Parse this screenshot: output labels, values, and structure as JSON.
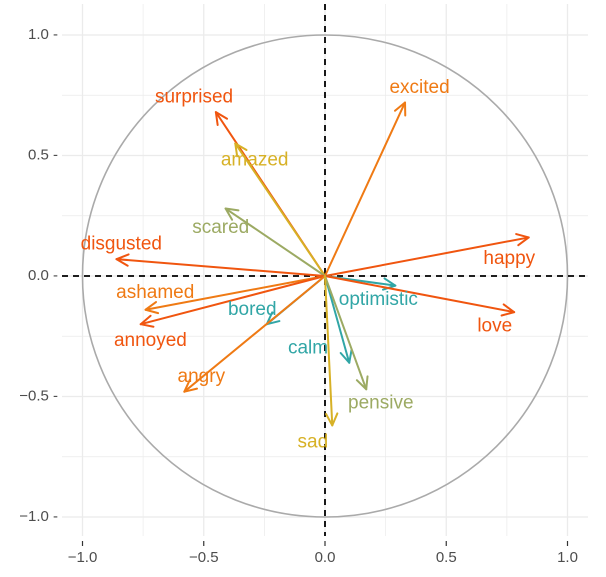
{
  "chart_data": {
    "type": "scatter",
    "title": "",
    "xlabel": "",
    "ylabel": "",
    "xlim": [
      -1.0,
      1.0
    ],
    "ylim": [
      -1.0,
      1.0
    ],
    "x_ticks": [
      -1.0,
      -0.5,
      0.0,
      0.5,
      1.0
    ],
    "y_ticks": [
      -1.0,
      -0.5,
      0.0,
      0.5,
      1.0
    ],
    "x_tick_labels": [
      "−1.0",
      "−0.5",
      "0.0",
      "0.5",
      "1.0"
    ],
    "y_tick_labels": [
      "−1.0 -",
      "−0.5 -",
      "0.0 -",
      "0.5 -",
      "1.0 -"
    ],
    "grid": true,
    "unit_circle": true,
    "reference_lines": {
      "x0": "dashed",
      "y0": "dashed",
      "color": "#000000"
    },
    "colors": {
      "circle": "#aaaaaa",
      "grid": "#ebebeb",
      "red_orange": "#f0550f",
      "orange": "#ef7a14",
      "gold": "#d7b126",
      "olive": "#9caa63",
      "teal": "#31a6a6"
    },
    "vectors": [
      {
        "name": "surprised",
        "x": -0.45,
        "y": 0.68,
        "color": "#f0550f"
      },
      {
        "name": "excited",
        "x": 0.33,
        "y": 0.72,
        "color": "#ef7a14"
      },
      {
        "name": "amazed",
        "x": -0.37,
        "y": 0.55,
        "color": "#d7b126"
      },
      {
        "name": "scared",
        "x": -0.41,
        "y": 0.28,
        "color": "#9caa63"
      },
      {
        "name": "disgusted",
        "x": -0.86,
        "y": 0.07,
        "color": "#f0550f"
      },
      {
        "name": "happy",
        "x": 0.84,
        "y": 0.16,
        "color": "#f0550f"
      },
      {
        "name": "ashamed",
        "x": -0.74,
        "y": -0.14,
        "color": "#ef7a14"
      },
      {
        "name": "annoyed",
        "x": -0.76,
        "y": -0.2,
        "color": "#f0550f"
      },
      {
        "name": "bored",
        "x": -0.24,
        "y": -0.2,
        "color": "#31a6a6"
      },
      {
        "name": "optimistic",
        "x": 0.29,
        "y": -0.04,
        "color": "#31a6a6"
      },
      {
        "name": "love",
        "x": 0.78,
        "y": -0.15,
        "color": "#f0550f"
      },
      {
        "name": "calm",
        "x": 0.1,
        "y": -0.36,
        "color": "#31a6a6"
      },
      {
        "name": "angry",
        "x": -0.58,
        "y": -0.48,
        "color": "#ef7a14"
      },
      {
        "name": "pensive",
        "x": 0.17,
        "y": -0.47,
        "color": "#9caa63"
      },
      {
        "name": "sad",
        "x": 0.03,
        "y": -0.62,
        "color": "#d7b126"
      }
    ]
  }
}
